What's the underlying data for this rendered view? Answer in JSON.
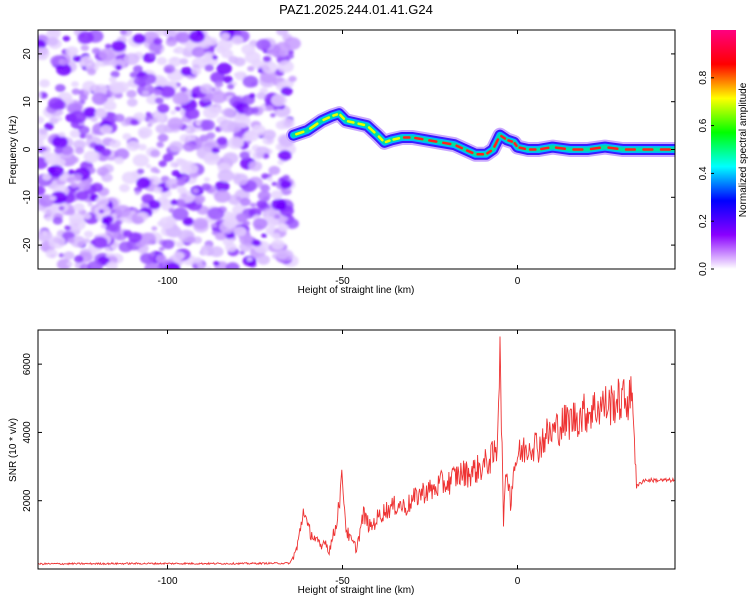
{
  "title": "PAZ1.2025.244.01.41.G24",
  "chart_data": [
    {
      "type": "heatmap",
      "xlabel": "Height of straight line (km)",
      "ylabel": "Frequency (Hz)",
      "xlim": [
        -137,
        45
      ],
      "ylim": [
        -25,
        25
      ],
      "x_ticks": [
        -100,
        -50,
        0
      ],
      "x_tick_labels": [
        "-100",
        "-50",
        "0"
      ],
      "y_ticks": [
        -20,
        -10,
        0,
        10,
        20
      ],
      "y_tick_labels": [
        "-20",
        "-10",
        "0",
        "10",
        "20"
      ],
      "noise_region_x": [
        -137,
        -64
      ],
      "ridge": {
        "x": [
          -64,
          -60,
          -56,
          -53,
          -51,
          -49,
          -46,
          -43,
          -40,
          -38,
          -36,
          -33,
          -30,
          -26,
          -22,
          -18,
          -15,
          -12,
          -9,
          -7,
          -5,
          -3,
          -1,
          0,
          3,
          6,
          10,
          15,
          20,
          25,
          30,
          35,
          40,
          45
        ],
        "y": [
          3,
          4,
          6,
          7,
          7.5,
          6,
          5.5,
          5,
          3,
          1.5,
          2,
          2.5,
          2.5,
          2,
          1.5,
          1,
          0,
          -1,
          -1,
          0,
          3,
          2,
          1.5,
          0.5,
          0,
          0,
          0.5,
          0,
          0,
          0.5,
          0,
          0,
          0,
          0
        ]
      },
      "colorbar": {
        "label": "Normalized spectral amplitude",
        "range": [
          0,
          1
        ],
        "ticks": [
          0.0,
          0.2,
          0.4,
          0.6,
          0.8
        ],
        "tick_labels": [
          "0.0",
          "0.2",
          "0.4",
          "0.6",
          "0.8"
        ],
        "colors": [
          "#ffffff",
          "#8a00ff",
          "#0000ff",
          "#00ffff",
          "#00ff00",
          "#ffff00",
          "#ff0000",
          "#ff0080"
        ]
      }
    },
    {
      "type": "line",
      "xlabel": "Height of straight line (km)",
      "ylabel": "SNR (10 * v/v)",
      "xlim": [
        -137,
        45
      ],
      "ylim": [
        0,
        7000
      ],
      "x_ticks": [
        -100,
        -50,
        0
      ],
      "x_tick_labels": [
        "-100",
        "-50",
        "0"
      ],
      "y_ticks": [
        2000,
        4000,
        6000
      ],
      "y_tick_labels": [
        "2000",
        "4000",
        "6000"
      ],
      "line_color": "#ee3333",
      "series": [
        {
          "x": [
            -137,
            -110,
            -80,
            -65,
            -63,
            -61,
            -60,
            -58,
            -56,
            -55,
            -54,
            -52,
            -50,
            -49,
            -48,
            -46,
            -44,
            -42,
            -40,
            -38,
            -36,
            -34,
            -32,
            -30,
            -28,
            -26,
            -24,
            -22,
            -20,
            -18,
            -16,
            -14,
            -12,
            -10,
            -8,
            -6,
            -5.5,
            -5,
            -4.5,
            -4,
            -3,
            -2,
            -1,
            0,
            2,
            4,
            6,
            8,
            10,
            12,
            14,
            16,
            18,
            20,
            22,
            24,
            26,
            28,
            30,
            32,
            33,
            34,
            36,
            40,
            45
          ],
          "y": [
            150,
            160,
            160,
            170,
            600,
            1800,
            1200,
            900,
            600,
            900,
            500,
            1200,
            2700,
            1200,
            900,
            600,
            1600,
            1200,
            1500,
            1700,
            1800,
            1900,
            1800,
            2000,
            2200,
            2300,
            2300,
            2500,
            2500,
            2700,
            2800,
            2800,
            2900,
            3000,
            3200,
            3400,
            4600,
            7000,
            3800,
            1500,
            3000,
            2000,
            3000,
            3300,
            3500,
            3700,
            3600,
            3900,
            4000,
            4200,
            4300,
            4400,
            4500,
            4600,
            4700,
            4800,
            4800,
            4900,
            4950,
            5000,
            5000,
            2400,
            2600,
            2600,
            2600
          ]
        }
      ]
    }
  ]
}
